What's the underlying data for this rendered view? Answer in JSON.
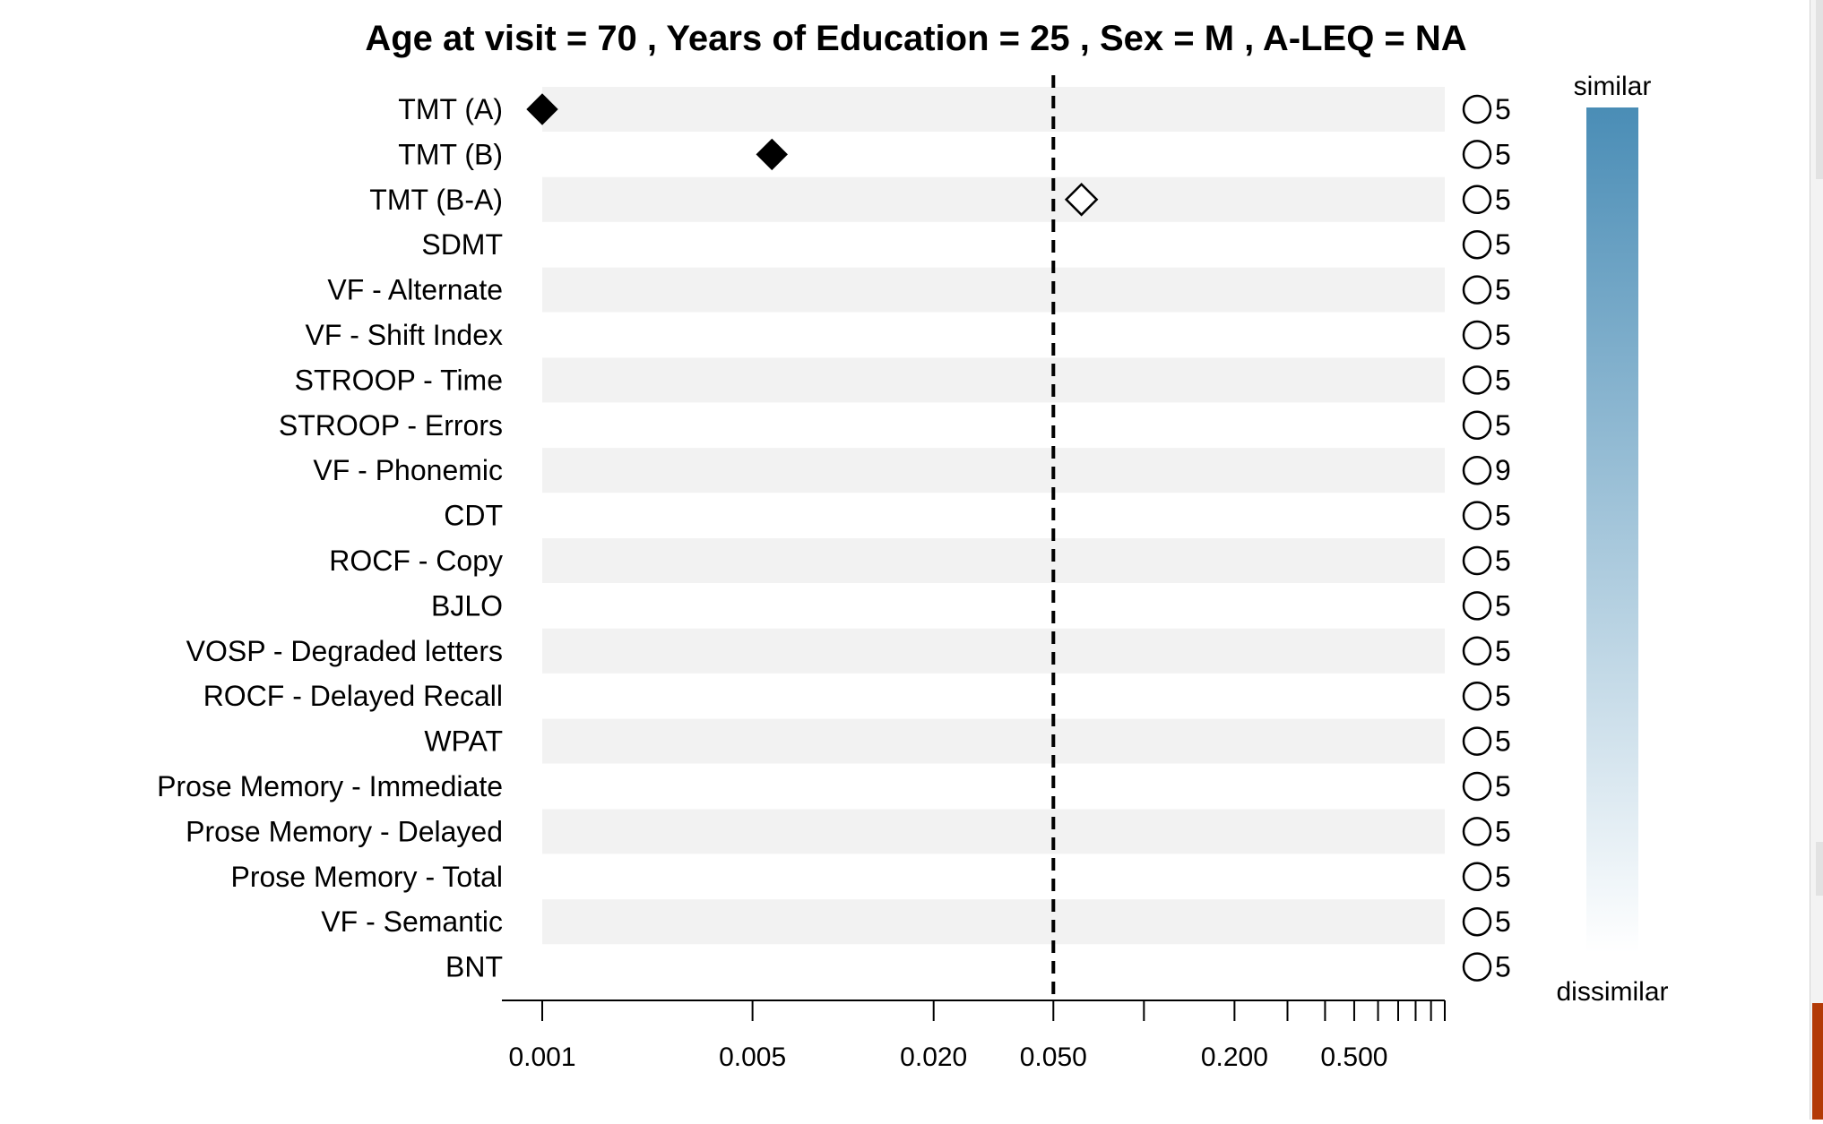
{
  "chart_data": {
    "type": "scatter",
    "title": "Age at visit = 70 , Years of Education = 25 , Sex = M , A-LEQ = NA",
    "x_scale": "log",
    "xlim": [
      0.001,
      1.0
    ],
    "x_ticks_labeled": [
      "0.001",
      "0.005",
      "0.020",
      "0.050",
      "0.200",
      "0.500"
    ],
    "x_ticks_values": [
      0.001,
      0.005,
      0.02,
      0.05,
      0.2,
      0.5
    ],
    "x_minor_ticks": [
      0.1,
      0.3,
      0.4,
      0.6,
      0.7,
      0.8,
      0.9,
      1.0
    ],
    "reference_line": 0.05,
    "categories": [
      "TMT (A)",
      "TMT (B)",
      "TMT (B-A)",
      "SDMT",
      "VF - Alternate",
      "VF - Shift Index",
      "STROOP - Time",
      "STROOP - Errors",
      "VF - Phonemic",
      "CDT",
      "ROCF - Copy",
      "BJLO",
      "VOSP - Degraded letters",
      "ROCF - Delayed Recall",
      "WPAT",
      "Prose Memory - Immediate",
      "Prose Memory - Delayed",
      "Prose Memory - Total ",
      "VF - Semantic",
      "BNT"
    ],
    "points": [
      {
        "category": "TMT (A)",
        "x": 0.001,
        "marker": "filled-diamond"
      },
      {
        "category": "TMT (B)",
        "x": 0.0058,
        "marker": "filled-diamond"
      },
      {
        "category": "TMT (B-A)",
        "x": 0.062,
        "marker": "open-diamond"
      }
    ],
    "counts": [
      5,
      5,
      5,
      5,
      5,
      5,
      5,
      5,
      9,
      5,
      5,
      5,
      5,
      5,
      5,
      5,
      5,
      5,
      5,
      5
    ],
    "legend": {
      "top_label": "similar",
      "bottom_label": "dissimilar",
      "color_top": "#4a8db6",
      "color_bottom": "#ffffff",
      "placement": "right"
    },
    "colors": {
      "band": "#f2f2f2",
      "marker": "#000000",
      "text": "#000000"
    }
  }
}
